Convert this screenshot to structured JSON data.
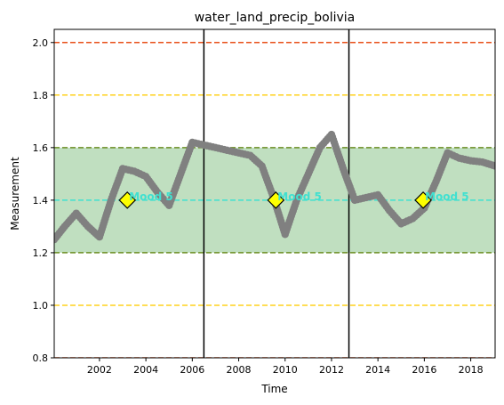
{
  "chart_data": {
    "type": "line",
    "title": "water_land_precip_bolivia",
    "xlabel": "Time",
    "ylabel": "Measurement",
    "xlim": [
      2000.05,
      2019.05
    ],
    "ylim": [
      0.8,
      2.05
    ],
    "xticks": [
      2002,
      2004,
      2006,
      2008,
      2010,
      2012,
      2014,
      2016,
      2018
    ],
    "yticks": [
      0.8,
      1.0,
      1.2,
      1.4,
      1.6,
      1.8,
      2.0
    ],
    "grid": false,
    "series": [
      {
        "color": "#808080",
        "marker": "circle",
        "x": [
          2000.05,
          2000.5,
          2001.0,
          2001.5,
          2002.0,
          2002.5,
          2003.0,
          2003.5,
          2004.0,
          2004.5,
          2005.0,
          2005.5,
          2006.0,
          2006.5,
          2007.0,
          2007.5,
          2008.0,
          2008.5,
          2009.0,
          2009.5,
          2010.0,
          2010.5,
          2011.0,
          2011.5,
          2012.0,
          2012.5,
          2013.0,
          2013.5,
          2014.0,
          2014.5,
          2015.0,
          2015.5,
          2016.0,
          2016.5,
          2017.0,
          2017.5,
          2018.0,
          2018.5,
          2019.05
        ],
        "y": [
          1.25,
          1.3,
          1.35,
          1.3,
          1.26,
          1.4,
          1.52,
          1.51,
          1.49,
          1.43,
          1.38,
          1.5,
          1.62,
          1.61,
          1.6,
          1.59,
          1.58,
          1.57,
          1.53,
          1.41,
          1.27,
          1.4,
          1.5,
          1.6,
          1.65,
          1.52,
          1.4,
          1.41,
          1.42,
          1.36,
          1.31,
          1.33,
          1.37,
          1.47,
          1.58,
          1.56,
          1.55,
          1.545,
          1.53
        ]
      }
    ],
    "shaded_band": {
      "y_from": 1.2,
      "y_to": 1.6,
      "color": "#c0dfc0",
      "edge_color": "#6b8e23"
    },
    "horizontal_lines": [
      {
        "y": 2.0,
        "color": "#e8501a",
        "style": "dashed"
      },
      {
        "y": 0.8,
        "color": "#e8501a",
        "style": "dashed"
      },
      {
        "y": 1.8,
        "color": "#ffd21e",
        "style": "dashed"
      },
      {
        "y": 1.0,
        "color": "#ffd21e",
        "style": "dashed"
      },
      {
        "y": 1.4,
        "color": "#40e0d0",
        "style": "dashed"
      }
    ],
    "vertical_lines": [
      {
        "x": 2006.5,
        "color": "#000000"
      },
      {
        "x": 2012.75,
        "color": "#000000"
      }
    ],
    "annotations": [
      {
        "x": 2003.2,
        "y": 1.4,
        "label": "Mood 5",
        "marker": "diamond",
        "marker_color": "#ffff00",
        "text_color": "#40e0d0"
      },
      {
        "x": 2009.6,
        "y": 1.4,
        "label": "Mood 5",
        "marker": "diamond",
        "marker_color": "#ffff00",
        "text_color": "#40e0d0"
      },
      {
        "x": 2015.95,
        "y": 1.4,
        "label": "Mood 5",
        "marker": "diamond",
        "marker_color": "#ffff00",
        "text_color": "#40e0d0"
      }
    ]
  }
}
